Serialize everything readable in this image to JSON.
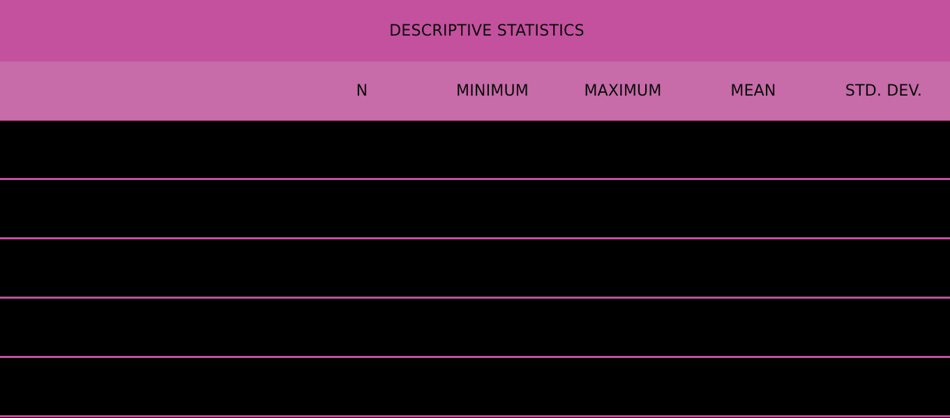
{
  "table": {
    "title": "DESCRIPTIVE STATISTICS",
    "columns": [
      "N",
      "MINIMUM",
      "MAXIMUM",
      "MEAN",
      "STD. DEV."
    ],
    "row_count": 5
  },
  "colors": {
    "title_background": "#c4519e",
    "header_background": "#c76ba9",
    "row_background": "#000000",
    "row_divider": "#c4519e",
    "text": "#0a0a0a"
  }
}
